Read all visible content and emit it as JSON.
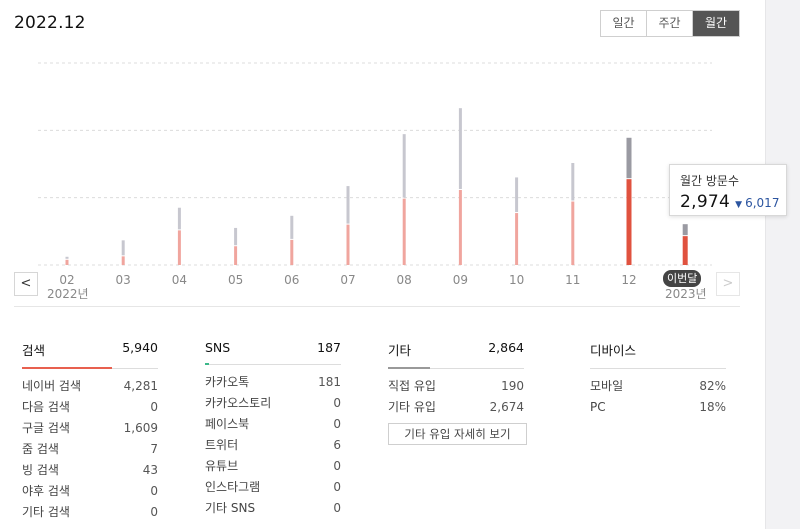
{
  "header": {
    "period": "2022.12",
    "toggle": [
      {
        "label": "일간",
        "active": false
      },
      {
        "label": "주간",
        "active": false
      },
      {
        "label": "월간",
        "active": true
      }
    ]
  },
  "chart_data": {
    "type": "bar",
    "stacked": true,
    "categories": [
      "02",
      "03",
      "04",
      "05",
      "06",
      "07",
      "08",
      "09",
      "10",
      "11",
      "12",
      "01"
    ],
    "year_labels": [
      {
        "at": "02",
        "text": "2022년"
      },
      {
        "at": "01",
        "text": "2023년"
      }
    ],
    "series": [
      {
        "values": [
          180,
          300,
          1200,
          650,
          870,
          1400,
          2300,
          2600,
          1800,
          2200,
          2974,
          1000
        ],
        "color": "#f0a59e",
        "highlight_color": "#e0523f"
      },
      {
        "values": [
          70,
          520,
          750,
          600,
          800,
          1300,
          2200,
          2800,
          1200,
          1300,
          1400,
          380
        ],
        "color": "#c7c7cf",
        "highlight_color": "#9a9aa2"
      }
    ],
    "highlight_index": 10,
    "current_index": 11,
    "current_label": "이번달",
    "ylim": [
      0,
      7000
    ],
    "grid": true,
    "tooltip": {
      "label": "월간 방문수",
      "value": "2,974",
      "previous": "6,017"
    }
  },
  "nav": {
    "prev": "<",
    "next": ">"
  },
  "panels": [
    {
      "title": "검색",
      "total": "5,940",
      "bar_color": "#e8604f",
      "bar_fraction": 0.66,
      "rows": [
        {
          "label": "네이버 검색",
          "value": "4,281"
        },
        {
          "label": "다음 검색",
          "value": "0"
        },
        {
          "label": "구글 검색",
          "value": "1,609"
        },
        {
          "label": "줌 검색",
          "value": "7"
        },
        {
          "label": "빙 검색",
          "value": "43"
        },
        {
          "label": "야후 검색",
          "value": "0"
        },
        {
          "label": "기타 검색",
          "value": "0"
        }
      ]
    },
    {
      "title": "SNS",
      "total": "187",
      "bar_color": "#3cb88a",
      "bar_fraction": 0.03,
      "rows": [
        {
          "label": "카카오톡",
          "value": "181"
        },
        {
          "label": "카카오스토리",
          "value": "0"
        },
        {
          "label": "페이스북",
          "value": "0"
        },
        {
          "label": "트위터",
          "value": "6"
        },
        {
          "label": "유튜브",
          "value": "0"
        },
        {
          "label": "인스타그램",
          "value": "0"
        },
        {
          "label": "기타 SNS",
          "value": "0"
        }
      ]
    },
    {
      "title": "기타",
      "total": "2,864",
      "bar_color": "#999999",
      "bar_fraction": 0.31,
      "rows": [
        {
          "label": "직접 유입",
          "value": "190"
        },
        {
          "label": "기타 유입",
          "value": "2,674"
        }
      ],
      "button": "기타 유입 자세히 보기"
    },
    {
      "title": "디바이스",
      "total": "",
      "bar_color": "",
      "bar_fraction": 0,
      "rows": [
        {
          "label": "모바일",
          "value": "82%"
        },
        {
          "label": "PC",
          "value": "18%"
        }
      ]
    }
  ]
}
